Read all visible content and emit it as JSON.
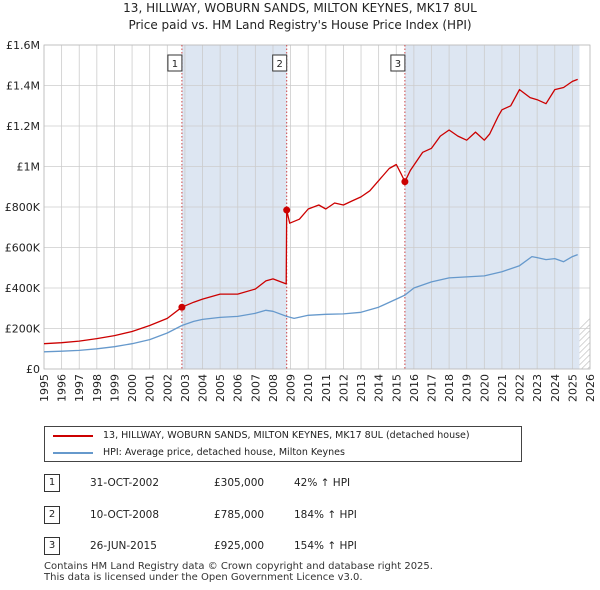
{
  "title_line1": "13, HILLWAY, WOBURN SANDS, MILTON KEYNES, MK17 8UL",
  "title_line2": "Price paid vs. HM Land Registry's House Price Index (HPI)",
  "legend": {
    "property_label": "13, HILLWAY, WOBURN SANDS, MILTON KEYNES, MK17 8UL (detached house)",
    "hpi_label": "HPI: Average price, detached house, Milton Keynes"
  },
  "colors": {
    "property": "#cc0000",
    "hpi": "#6699cc",
    "shade": "#dde6f2",
    "grid": "#cccccc",
    "marker_line": "#cc4444",
    "future_hatch": "#bbbbbb"
  },
  "transactions": [
    {
      "num": "1",
      "date": "31-OCT-2002",
      "price": "£305,000",
      "hpi": "42% ↑ HPI"
    },
    {
      "num": "2",
      "date": "10-OCT-2008",
      "price": "£785,000",
      "hpi": "184% ↑ HPI"
    },
    {
      "num": "3",
      "date": "26-JUN-2015",
      "price": "£925,000",
      "hpi": "154% ↑ HPI"
    }
  ],
  "footer_line1": "Contains HM Land Registry data © Crown copyright and database right 2025.",
  "footer_line2": "This data is licensed under the Open Government Licence v3.0.",
  "chart_data": {
    "type": "line",
    "title": "13, HILLWAY, WOBURN SANDS, MILTON KEYNES, MK17 8UL",
    "subtitle": "Price paid vs. HM Land Registry's House Price Index (HPI)",
    "xlabel": "",
    "ylabel": "",
    "xlim": [
      1995,
      2026
    ],
    "ylim": [
      0,
      1600000
    ],
    "grid": true,
    "x_ticks": [
      1995,
      1996,
      1997,
      1998,
      1999,
      2000,
      2001,
      2002,
      2003,
      2004,
      2005,
      2006,
      2007,
      2008,
      2009,
      2010,
      2011,
      2012,
      2013,
      2014,
      2015,
      2016,
      2017,
      2018,
      2019,
      2020,
      2021,
      2022,
      2023,
      2024,
      2025,
      2026
    ],
    "y_ticks": [
      {
        "value": 0,
        "label": "£0"
      },
      {
        "value": 200000,
        "label": "£200K"
      },
      {
        "value": 400000,
        "label": "£400K"
      },
      {
        "value": 600000,
        "label": "£600K"
      },
      {
        "value": 800000,
        "label": "£800K"
      },
      {
        "value": 1000000,
        "label": "£1M"
      },
      {
        "value": 1200000,
        "label": "£1.2M"
      },
      {
        "value": 1400000,
        "label": "£1.4M"
      },
      {
        "value": 1600000,
        "label": "£1.6M"
      }
    ],
    "shaded_ranges": [
      [
        2002.83,
        2008.78
      ],
      [
        2015.49,
        2025.4
      ]
    ],
    "future_start": 2025.4,
    "sales": [
      {
        "label": "1",
        "x": 2002.83,
        "y": 305000
      },
      {
        "label": "2",
        "x": 2008.78,
        "y": 785000
      },
      {
        "label": "3",
        "x": 2015.49,
        "y": 925000
      }
    ],
    "series": [
      {
        "name": "13, HILLWAY, WOBURN SANDS, MILTON KEYNES, MK17 8UL (detached house)",
        "x": [
          1995,
          1996,
          1997,
          1998,
          1999,
          2000,
          2001,
          2002,
          2002.83,
          2003.5,
          2004,
          2005,
          2006,
          2007,
          2007.6,
          2008,
          2008.75,
          2008.78,
          2008.95,
          2009.5,
          2010,
          2010.6,
          2011,
          2011.5,
          2012,
          2012.5,
          2013,
          2013.5,
          2014,
          2014.6,
          2015,
          2015.3,
          2015.49,
          2015.8,
          2016.5,
          2017,
          2017.5,
          2018,
          2018.5,
          2019,
          2019.5,
          2020,
          2020.3,
          2020.8,
          2021,
          2021.5,
          2022,
          2022.6,
          2023,
          2023.5,
          2024,
          2024.5,
          2025,
          2025.3
        ],
        "values": [
          125000,
          130000,
          138000,
          150000,
          165000,
          185000,
          215000,
          250000,
          305000,
          330000,
          345000,
          370000,
          370000,
          395000,
          435000,
          445000,
          420000,
          785000,
          720000,
          740000,
          790000,
          810000,
          790000,
          820000,
          810000,
          830000,
          850000,
          880000,
          930000,
          990000,
          1010000,
          960000,
          925000,
          980000,
          1070000,
          1090000,
          1150000,
          1180000,
          1150000,
          1130000,
          1170000,
          1130000,
          1160000,
          1250000,
          1280000,
          1300000,
          1380000,
          1340000,
          1330000,
          1310000,
          1380000,
          1390000,
          1420000,
          1430000
        ]
      },
      {
        "name": "HPI: Average price, detached house, Milton Keynes",
        "x": [
          1995,
          1996,
          1997,
          1998,
          1999,
          2000,
          2001,
          2002,
          2002.83,
          2003.5,
          2004,
          2005,
          2006,
          2007,
          2007.6,
          2008,
          2008.78,
          2009.2,
          2010,
          2011,
          2012,
          2013,
          2014,
          2015,
          2015.49,
          2016,
          2017,
          2018,
          2019,
          2020,
          2021,
          2022,
          2022.7,
          2023,
          2023.5,
          2024,
          2024.5,
          2025,
          2025.3
        ],
        "values": [
          85000,
          88000,
          92000,
          100000,
          110000,
          125000,
          145000,
          178000,
          215000,
          235000,
          245000,
          255000,
          260000,
          275000,
          290000,
          285000,
          260000,
          250000,
          265000,
          270000,
          272000,
          280000,
          305000,
          345000,
          365000,
          400000,
          430000,
          450000,
          455000,
          460000,
          480000,
          510000,
          555000,
          550000,
          540000,
          545000,
          530000,
          555000,
          565000
        ]
      }
    ]
  }
}
